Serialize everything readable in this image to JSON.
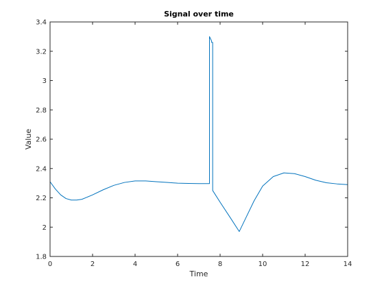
{
  "chart_data": {
    "type": "line",
    "title": "Signal over time",
    "xlabel": "Time",
    "ylabel": "Value",
    "xlim": [
      0,
      14
    ],
    "ylim": [
      1.8,
      3.4
    ],
    "xticks": [
      0,
      2,
      4,
      6,
      8,
      10,
      12,
      14
    ],
    "xtick_labels": [
      "0",
      "2",
      "4",
      "6",
      "8",
      "10",
      "12",
      "14"
    ],
    "yticks": [
      1.8,
      2,
      2.2,
      2.4,
      2.6,
      2.8,
      3,
      3.2,
      3.4
    ],
    "ytick_labels": [
      "1.8",
      "2",
      "2.2",
      "2.4",
      "2.6",
      "2.8",
      "3",
      "3.2",
      "3.4"
    ],
    "grid": false,
    "legend": "none",
    "series": [
      {
        "color": "#0072BD",
        "x": [
          0,
          0.25,
          0.5,
          0.75,
          1,
          1.25,
          1.5,
          2,
          2.5,
          3,
          3.5,
          4,
          4.5,
          5,
          5.5,
          6,
          6.5,
          7,
          7.5,
          7.5,
          7.6,
          7.6,
          7.65,
          7.65,
          8,
          8.5,
          8.9,
          9.2,
          9.6,
          10,
          10.5,
          11,
          11.5,
          12,
          12.5,
          13,
          13.5,
          14
        ],
        "y": [
          2.31,
          2.26,
          2.22,
          2.195,
          2.185,
          2.185,
          2.19,
          2.22,
          2.255,
          2.285,
          2.305,
          2.315,
          2.315,
          2.31,
          2.305,
          2.3,
          2.298,
          2.297,
          2.297,
          3.3,
          3.27,
          3.26,
          3.26,
          2.25,
          2.17,
          2.06,
          1.97,
          2.06,
          2.18,
          2.28,
          2.345,
          2.37,
          2.365,
          2.345,
          2.32,
          2.303,
          2.295,
          2.29
        ]
      }
    ]
  }
}
